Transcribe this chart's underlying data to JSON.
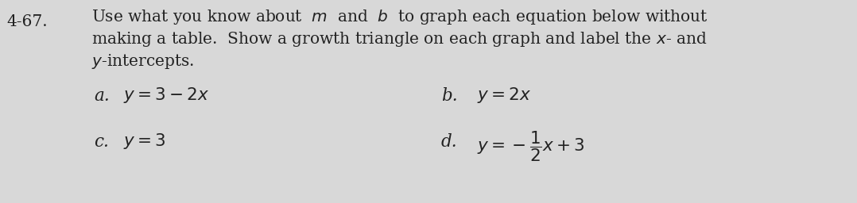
{
  "background_color": "#d8d8d8",
  "problem_number": "4-67.",
  "instruction_line1": "Use what you know about  $m$  and  $b$  to graph each equation below without",
  "instruction_line2": "making a table.  Show a growth triangle on each graph and label the $x$- and",
  "instruction_line3": "$y$-intercepts.",
  "label_a": "a.",
  "eq_a": "$y=3-2x$",
  "label_b": "b.",
  "eq_b": "$y=2x$",
  "label_c": "c.",
  "eq_c": "$y=3$",
  "label_d": "d.",
  "eq_d": "$y=-\\dfrac{1}{2}x+3$",
  "text_color": "#222222",
  "font_size_header": 14.5,
  "font_size_eq": 15.5,
  "font_size_label": 15.5,
  "font_size_problem": 14.5
}
